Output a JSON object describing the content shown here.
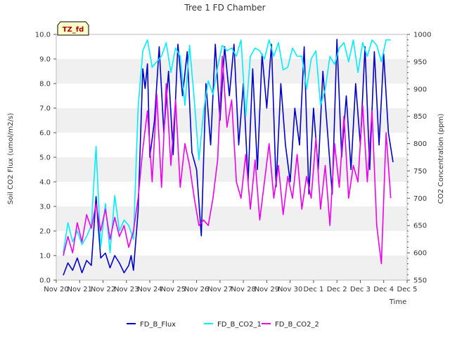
{
  "chart_data": {
    "type": "line",
    "title": "Tree 1 FD Chamber",
    "badge": "TZ_fd",
    "xlabel": "Time",
    "ylabel": "Soil CO2 Flux (umol/m2/s)",
    "y2label": "CO2 Concentration (ppm)",
    "ylim": [
      0,
      10
    ],
    "y2lim": [
      550,
      1000
    ],
    "xlim": [
      0,
      15
    ],
    "grid": "horizontal bands",
    "legend_position": "bottom-center",
    "x_ticks": [
      "Nov 20",
      "Nov 21",
      "Nov 22",
      "Nov 23",
      "Nov 24",
      "Nov 25",
      "Nov 26",
      "Nov 27",
      "Nov 28",
      "Nov 29",
      "Nov 30",
      "Dec 1",
      "Dec 2",
      "Dec 3",
      "Dec 4",
      "Dec 5"
    ],
    "y_ticks": [
      "0.0",
      "1.0",
      "2.0",
      "3.0",
      "4.0",
      "5.0",
      "6.0",
      "7.0",
      "8.0",
      "9.0",
      "10.0"
    ],
    "y2_ticks": [
      "550",
      "600",
      "650",
      "700",
      "750",
      "800",
      "850",
      "900",
      "950",
      "1000"
    ],
    "series": [
      {
        "name": "FD_B_Flux",
        "axis": "left",
        "color": "#0000cc",
        "x": [
          0.3,
          0.5,
          0.7,
          0.9,
          1.1,
          1.3,
          1.5,
          1.7,
          1.9,
          2.1,
          2.3,
          2.5,
          2.7,
          2.9,
          3.1,
          3.2,
          3.3,
          3.5,
          3.7,
          3.8,
          3.9,
          4.0,
          4.2,
          4.4,
          4.6,
          4.8,
          5.0,
          5.2,
          5.4,
          5.6,
          5.8,
          6.0,
          6.2,
          6.4,
          6.6,
          6.8,
          7.0,
          7.2,
          7.4,
          7.6,
          7.8,
          8.0,
          8.2,
          8.4,
          8.6,
          8.8,
          9.0,
          9.2,
          9.4,
          9.6,
          9.8,
          10.0,
          10.2,
          10.4,
          10.6,
          10.8,
          11.0,
          11.2,
          11.4,
          11.6,
          11.8,
          12.0,
          12.2,
          12.4,
          12.6,
          12.8,
          13.0,
          13.2,
          13.4,
          13.6,
          13.8,
          14.0,
          14.2,
          14.4
        ],
        "y": [
          0.2,
          0.7,
          0.4,
          0.9,
          0.3,
          0.8,
          0.6,
          3.4,
          0.9,
          1.1,
          0.5,
          1.0,
          0.7,
          0.3,
          0.6,
          1.0,
          0.4,
          2.8,
          8.6,
          7.8,
          8.8,
          5.0,
          6.5,
          9.5,
          6.0,
          8.5,
          5.1,
          9.6,
          7.5,
          9.3,
          5.2,
          4.5,
          1.8,
          8.0,
          5.5,
          9.6,
          6.5,
          9.5,
          7.5,
          9.6,
          5.5,
          8.0,
          4.0,
          8.6,
          4.5,
          9.2,
          7.0,
          9.6,
          3.8,
          8.0,
          5.5,
          4.0,
          7.0,
          5.5,
          9.5,
          3.5,
          7.0,
          4.5,
          8.5,
          6.0,
          3.5,
          9.8,
          5.0,
          7.5,
          4.5,
          8.0,
          5.5,
          9.5,
          4.5,
          9.3,
          5.5,
          9.2,
          6.0,
          4.8
        ]
      },
      {
        "name": "FD_B_CO2_1",
        "axis": "right",
        "color": "#00eeff",
        "x": [
          0.3,
          0.5,
          0.7,
          0.9,
          1.1,
          1.3,
          1.5,
          1.7,
          1.9,
          2.1,
          2.3,
          2.5,
          2.7,
          2.9,
          3.1,
          3.3,
          3.5,
          3.7,
          3.9,
          4.1,
          4.3,
          4.5,
          4.7,
          4.9,
          5.1,
          5.3,
          5.5,
          5.7,
          5.9,
          6.1,
          6.3,
          6.5,
          6.7,
          6.9,
          7.1,
          7.3,
          7.5,
          7.7,
          7.9,
          8.1,
          8.3,
          8.5,
          8.7,
          8.9,
          9.1,
          9.3,
          9.5,
          9.7,
          9.9,
          10.1,
          10.3,
          10.5,
          10.7,
          10.9,
          11.1,
          11.3,
          11.5,
          11.7,
          11.9,
          12.1,
          12.3,
          12.5,
          12.7,
          12.9,
          13.1,
          13.3,
          13.5,
          13.7,
          13.9,
          14.1,
          14.3
        ],
        "y": [
          600,
          655,
          620,
          640,
          615,
          630,
          650,
          795,
          610,
          690,
          600,
          705,
          640,
          660,
          650,
          625,
          865,
          970,
          990,
          940,
          950,
          960,
          985,
          930,
          975,
          960,
          870,
          980,
          880,
          770,
          860,
          915,
          890,
          940,
          980,
          970,
          975,
          960,
          990,
          850,
          960,
          975,
          970,
          955,
          990,
          960,
          985,
          935,
          940,
          975,
          960,
          960,
          900,
          955,
          970,
          870,
          900,
          960,
          945,
          975,
          985,
          950,
          990,
          930,
          985,
          960,
          990,
          980,
          950,
          990,
          990
        ]
      },
      {
        "name": "FD_B_CO2_2",
        "axis": "right",
        "color": "#ee00ee",
        "x": [
          0.3,
          0.5,
          0.7,
          0.9,
          1.1,
          1.3,
          1.5,
          1.7,
          1.9,
          2.1,
          2.3,
          2.5,
          2.7,
          2.9,
          3.1,
          3.3,
          3.5,
          3.7,
          3.9,
          4.1,
          4.3,
          4.5,
          4.7,
          4.9,
          5.1,
          5.3,
          5.5,
          5.7,
          5.9,
          6.1,
          6.3,
          6.5,
          6.7,
          6.9,
          7.1,
          7.3,
          7.5,
          7.7,
          7.9,
          8.1,
          8.3,
          8.5,
          8.7,
          8.9,
          9.1,
          9.3,
          9.5,
          9.7,
          9.9,
          10.1,
          10.3,
          10.5,
          10.7,
          10.9,
          11.1,
          11.3,
          11.5,
          11.7,
          11.9,
          12.1,
          12.3,
          12.5,
          12.7,
          12.9,
          13.1,
          13.3,
          13.5,
          13.7,
          13.9,
          14.1,
          14.3
        ],
        "y": [
          595,
          630,
          600,
          655,
          620,
          670,
          645,
          690,
          640,
          680,
          625,
          665,
          630,
          650,
          610,
          640,
          700,
          790,
          860,
          730,
          890,
          720,
          910,
          760,
          880,
          720,
          800,
          760,
          700,
          650,
          660,
          650,
          700,
          770,
          960,
          830,
          880,
          730,
          700,
          780,
          680,
          770,
          660,
          730,
          800,
          700,
          760,
          670,
          740,
          700,
          780,
          680,
          740,
          700,
          810,
          680,
          760,
          650,
          800,
          720,
          850,
          700,
          760,
          730,
          870,
          730,
          860,
          650,
          580,
          820,
          700
        ]
      }
    ]
  }
}
